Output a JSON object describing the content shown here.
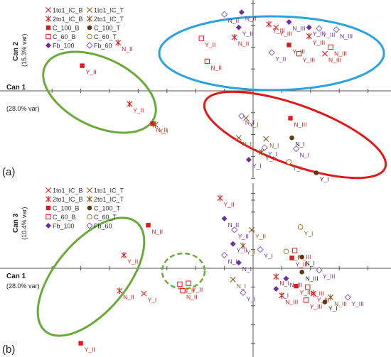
{
  "colors": {
    "red": "#e01a1a",
    "brown": "#8a5a1e",
    "olive": "#a57a2a",
    "darkbrown": "#5a3a10",
    "purple": "#6b2fa0",
    "lightpurple": "#8a62c4",
    "green": "#6aaa3a",
    "blue": "#29a3e0",
    "ellipse_red": "#e01a1a",
    "leader": "#777777"
  },
  "legend": [
    {
      "label": "1to1_IC_B",
      "marker": "xcross",
      "color": "#e01a1a"
    },
    {
      "label": "1to1_IC_T",
      "marker": "xcross",
      "color": "#8a5a1e"
    },
    {
      "label": "2to1_IC_B",
      "marker": "star",
      "color": "#e01a1a"
    },
    {
      "label": "2to1_IC_T",
      "marker": "star",
      "color": "#8a5a1e"
    },
    {
      "label": "C_100_B",
      "marker": "square-filled",
      "color": "#e01a1a"
    },
    {
      "label": "C_100_T",
      "marker": "circle-filled",
      "color": "#5a3a10"
    },
    {
      "label": "C_60_B",
      "marker": "square-open",
      "color": "#e01a1a"
    },
    {
      "label": "C_60_T",
      "marker": "circle-open",
      "color": "#a57a2a"
    },
    {
      "label": "Fb_100",
      "marker": "diamond-filled",
      "color": "#6b2fa0"
    },
    {
      "label": "Fb_60",
      "marker": "diamond-open",
      "color": "#8a62c4"
    }
  ],
  "chart_data": [
    {
      "type": "scatter",
      "panel_label": "(a)",
      "xlabel": "Can 1",
      "xlabel_var": "(28.0% var)",
      "ylabel": "Can 2",
      "ylabel_var": "(15.3% var)",
      "xlim": [
        -14,
        8
      ],
      "ylim": [
        -10,
        9
      ],
      "points": [
        {
          "series": "C_100_B",
          "label": "Y_II",
          "x": -11.9,
          "y": 2.3
        },
        {
          "series": "2to1_IC_B",
          "label": "N_II",
          "x": -9.4,
          "y": 4.4
        },
        {
          "series": "2to1_IC_B",
          "label": "Y_II",
          "x": -8.6,
          "y": -1.2
        },
        {
          "series": "C_100_B",
          "label": "N_II",
          "x": -7.0,
          "y": -3.0
        },
        {
          "series": "2to1_IC_T",
          "label": "Y_I",
          "x": -6.8,
          "y": -3.1
        },
        {
          "series": "Fb_60",
          "label": "N_II",
          "x": -2.0,
          "y": 7.0
        },
        {
          "series": "Fb_100",
          "label": "N_II",
          "x": -0.8,
          "y": 7.2
        },
        {
          "series": "Fb_100",
          "label": "Y_II",
          "x": -1.0,
          "y": 5.8
        },
        {
          "series": "C_60_B",
          "label": "Y_II",
          "x": -3.6,
          "y": 4.8
        },
        {
          "series": "2to1_IC_B",
          "label": "N_II",
          "x": -1.3,
          "y": 4.9
        },
        {
          "series": "C_60_B",
          "label": "N_II",
          "x": -3.2,
          "y": 2.7
        },
        {
          "series": "Fb_60",
          "label": "Y_II",
          "x": 1.3,
          "y": 3.5
        },
        {
          "series": "2to1_IC_B",
          "label": "Y_III",
          "x": 1.1,
          "y": 6.1
        },
        {
          "series": "Fb_100",
          "label": "N_III",
          "x": 2.5,
          "y": 6.3
        },
        {
          "series": "1to1_IC_B",
          "label": "Y_III",
          "x": 1.6,
          "y": 5.8
        },
        {
          "series": "C_100_B",
          "label": "Y_III",
          "x": 2.5,
          "y": 4.2
        },
        {
          "series": "C_60_B",
          "label": "Y_III",
          "x": 3.2,
          "y": 3.4
        },
        {
          "series": "Fb_100",
          "label": "Y_III",
          "x": 3.9,
          "y": 5.8
        },
        {
          "series": "Fb_60",
          "label": "Y_III",
          "x": 4.6,
          "y": 5.7
        },
        {
          "series": "2to1_IC_B",
          "label": "Y_III",
          "x": 3.9,
          "y": 5.0
        },
        {
          "series": "Fb_60",
          "label": "N_III",
          "x": 5.8,
          "y": 5.6
        },
        {
          "series": "C_60_B",
          "label": "N_III",
          "x": 5.4,
          "y": 4.0
        },
        {
          "series": "1to1_IC_B",
          "label": "N_III",
          "x": 5.0,
          "y": 3.4
        },
        {
          "series": "Fb_60",
          "label": "N_I",
          "x": -0.8,
          "y": -2.3
        },
        {
          "series": "1to1_IC_T",
          "label": "Y_I",
          "x": -0.5,
          "y": -2.5
        },
        {
          "series": "C_100_B",
          "label": "N_III",
          "x": 2.6,
          "y": -2.5
        },
        {
          "series": "1to1_IC_T",
          "label": "N_I",
          "x": -1.0,
          "y": -4.3
        },
        {
          "series": "1to1_IC_T",
          "label": "N_I",
          "x": 0.9,
          "y": -4.4
        },
        {
          "series": "C_100_T",
          "label": "N_I",
          "x": 2.7,
          "y": -4.3
        },
        {
          "series": "Fb_60",
          "label": "Y_I",
          "x": 0.8,
          "y": -5.2
        },
        {
          "series": "2to1_IC_T",
          "label": "Y_I",
          "x": 0.6,
          "y": -5.6
        },
        {
          "series": "Fb_60",
          "label": "N_I",
          "x": 3.0,
          "y": -5.3
        },
        {
          "series": "Fb_100",
          "label": "Y_I",
          "x": -0.3,
          "y": -6.3
        },
        {
          "series": "C_60_T",
          "label": "Y_I",
          "x": 2.5,
          "y": -6.5
        },
        {
          "series": "C_100_T",
          "label": "Y_I",
          "x": 4.4,
          "y": -7.5
        }
      ]
    },
    {
      "type": "scatter",
      "panel_label": "(b)",
      "xlabel": "Can 1",
      "xlabel_var": "(28.0% var)",
      "ylabel": "Can 3",
      "ylabel_var": "(10.4% var)",
      "xlim": [
        -14,
        8
      ],
      "ylim": [
        -10,
        9
      ],
      "points": [
        {
          "series": "C_100_B",
          "label": "N_II",
          "x": -7.3,
          "y": 4.6
        },
        {
          "series": "2to1_IC_B",
          "label": "Y_II",
          "x": -9.0,
          "y": 1.4
        },
        {
          "series": "2to1_IC_B",
          "label": "N_II",
          "x": -9.3,
          "y": -2.4
        },
        {
          "series": "1to1_IC_B",
          "label": "Y_I",
          "x": -7.6,
          "y": -2.7
        },
        {
          "series": "C_100_B",
          "label": "Y_II",
          "x": -12.0,
          "y": -8.0
        },
        {
          "series": "2to1_IC_B",
          "label": "Y_II",
          "x": -2.3,
          "y": 7.5
        },
        {
          "series": "Fb_100",
          "label": "N_II",
          "x": -2.0,
          "y": 5.3
        },
        {
          "series": "Fb_60",
          "label": "Y_II",
          "x": -1.3,
          "y": 4.1
        },
        {
          "series": "1to1_IC_T",
          "label": "Y_II",
          "x": -0.1,
          "y": 4.1
        },
        {
          "series": "Fb_100",
          "label": "Y_II",
          "x": -1.4,
          "y": 2.6
        },
        {
          "series": "2to1_IC_T",
          "label": "Y_I",
          "x": -0.7,
          "y": 2.4
        },
        {
          "series": "Fb_60",
          "label": "N_I",
          "x": -2.0,
          "y": 1.4
        },
        {
          "series": "Fb_60",
          "label": "Y_I",
          "x": 0.5,
          "y": 2.0
        },
        {
          "series": "Fb_100",
          "label": "N_I",
          "x": -1.0,
          "y": 0.6
        },
        {
          "series": "C_60_B",
          "label": "N_II",
          "x": -5.1,
          "y": -1.7
        },
        {
          "series": "C_60_B",
          "label": "Y_II",
          "x": -4.5,
          "y": -1.6
        },
        {
          "series": "C_60_B",
          "label": "N_II",
          "x": -4.9,
          "y": -2.4
        },
        {
          "series": "1to1_IC_T",
          "label": "N_I",
          "x": -1.4,
          "y": -1.2
        },
        {
          "series": "Fb_60",
          "label": "Y_I",
          "x": -0.7,
          "y": -2.6
        },
        {
          "series": "C_60_T",
          "label": "N_I",
          "x": 2.3,
          "y": 1.8
        },
        {
          "series": "2to1_IC_B",
          "label": "N_I",
          "x": 1.6,
          "y": -0.9
        },
        {
          "series": "Fb_100",
          "label": "Y_I",
          "x": 1.6,
          "y": -2.2
        },
        {
          "series": "C_60_T",
          "label": "Y_I",
          "x": 3.3,
          "y": 4.4
        },
        {
          "series": "C_60_B",
          "label": "N_III",
          "x": 2.9,
          "y": 1.9
        },
        {
          "series": "C_100_B",
          "label": "Y_III",
          "x": 2.7,
          "y": 1.1
        },
        {
          "series": "C_100_T",
          "label": "N_I",
          "x": 3.4,
          "y": 1.2
        },
        {
          "series": "C_100_T",
          "label": "N_III",
          "x": 3.4,
          "y": -0.4
        },
        {
          "series": "Fb_100",
          "label": "N_III",
          "x": 2.3,
          "y": -1.1
        },
        {
          "series": "Fb_60",
          "label": "Y_III",
          "x": 4.6,
          "y": -0.2
        },
        {
          "series": "C_100_B",
          "label": "Y_III",
          "x": 3.0,
          "y": -1.9
        },
        {
          "series": "2to1_IC_B",
          "label": "N_III",
          "x": 2.0,
          "y": -2.9
        },
        {
          "series": "C_60_B",
          "label": "N_III",
          "x": 3.8,
          "y": -2.0
        },
        {
          "series": "2to1_IC_B",
          "label": "Y_III",
          "x": 4.2,
          "y": -2.7
        },
        {
          "series": "C_60_B",
          "label": "Y_III",
          "x": 3.7,
          "y": -3.4
        },
        {
          "series": "C_100_T",
          "label": "Y_I",
          "x": 5.0,
          "y": -3.6
        },
        {
          "series": "2to1_IC_T",
          "label": "N_III",
          "x": 5.4,
          "y": -3.1
        },
        {
          "series": "Fb_60",
          "label": "Y_III",
          "x": 6.6,
          "y": -3.1
        }
      ]
    }
  ]
}
